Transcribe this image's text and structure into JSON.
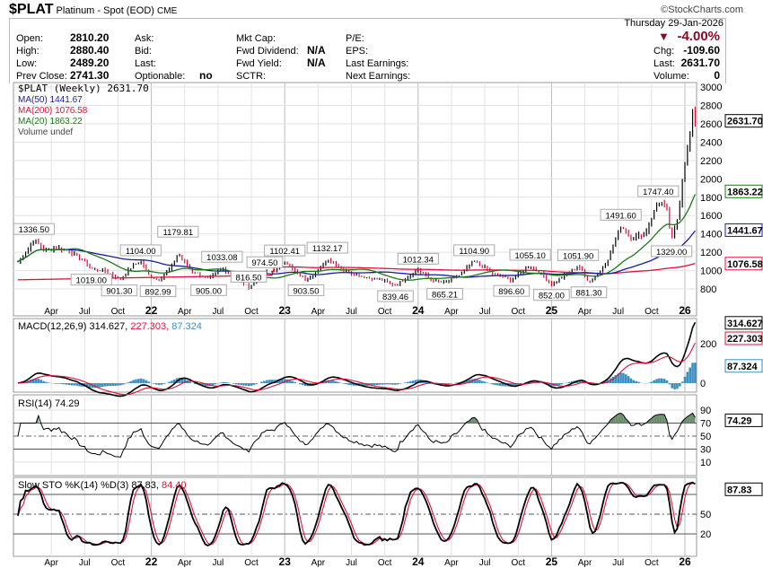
{
  "header": {
    "symbol": "$PLAT",
    "name": "Platinum - Spot (EOD)",
    "exchange": "CME",
    "brand": "©StockCharts.com",
    "date": "Thursday  29-Jan-2026"
  },
  "quote": {
    "open_label": "Open:",
    "open": "2810.20",
    "high_label": "High:",
    "high": "2880.40",
    "low_label": "Low:",
    "low": "2489.20",
    "prev_label": "Prev Close:",
    "prev": "2741.30",
    "ask_label": "Ask:",
    "bid_label": "Bid:",
    "last_label": "Last:",
    "optionable_label": "Optionable:",
    "optionable": "no",
    "mktcap_label": "Mkt Cap:",
    "fwddiv_label": "Fwd Dividend:",
    "fwddiv": "N/A",
    "fwdyield_label": "Fwd Yield:",
    "fwdyield": "N/A",
    "sctr_label": "SCTR:",
    "pe_label": "P/E:",
    "eps_label": "EPS:",
    "lastearn_label": "Last Earnings:",
    "nextearn_label": "Next Earnings:",
    "pct": "-4.00%",
    "chg_label": "Chg:",
    "chg": "-109.60",
    "last2_label": "Last:",
    "last2": "2631.70",
    "vol_label": "Volume:",
    "vol": "0"
  },
  "legend": {
    "price": "$PLAT (Weekly) 2631.70",
    "ma50": "MA(50) 1441.67",
    "ma200": "MA(200) 1076.58",
    "ma20": "MA(20) 1863.22",
    "volume": "Volume undef",
    "macd": "MACD(12,26,9) 314.627,",
    "macd_sig": "227.303,",
    "macd_hist": "87.324",
    "rsi": "RSI(14) 74.29",
    "sto": "Slow STO %K(14) %D(3) 87.83,",
    "sto_d": "84.40"
  },
  "colors": {
    "up": "#000000",
    "down": "#d0103a",
    "ma50": "#1a1aa0",
    "ma200": "#e0103a",
    "ma20": "#1a7a1a",
    "hist": "#3a8fc0",
    "rsi_fill": "#6a8f6a",
    "neg": "#8b0a2a"
  },
  "chart_data": {
    "type": "line",
    "title": "$PLAT (Weekly)",
    "x_labels": [
      [
        "Apr",
        2021.25
      ],
      [
        "Jul",
        2021.5
      ],
      [
        "Oct",
        2021.75
      ],
      [
        "22",
        2022
      ],
      [
        "Apr",
        2022.25
      ],
      [
        "Jul",
        2022.5
      ],
      [
        "Oct",
        2022.75
      ],
      [
        "23",
        2023
      ],
      [
        "Apr",
        2023.25
      ],
      [
        "Jul",
        2023.5
      ],
      [
        "Oct",
        2023.75
      ],
      [
        "24",
        2024
      ],
      [
        "Apr",
        2024.25
      ],
      [
        "Jul",
        2024.5
      ],
      [
        "Oct",
        2024.75
      ],
      [
        "25",
        2025
      ],
      [
        "Apr",
        2025.25
      ],
      [
        "Jul",
        2025.5
      ],
      [
        "Oct",
        2025.75
      ],
      [
        "26",
        2026
      ]
    ],
    "price_axis": [
      "3000",
      "2800",
      "2600",
      "2400",
      "2200",
      "2000",
      "1800",
      "1600",
      "1400",
      "1200",
      "1000",
      "800"
    ],
    "price_ylim": [
      800,
      3000
    ],
    "price_path": [
      [
        2021.0,
        1100
      ],
      [
        2021.06,
        1200
      ],
      [
        2021.12,
        1336.5
      ],
      [
        2021.2,
        1220
      ],
      [
        2021.3,
        1250
      ],
      [
        2021.4,
        1200
      ],
      [
        2021.5,
        1100
      ],
      [
        2021.55,
        1019
      ],
      [
        2021.65,
        1000
      ],
      [
        2021.76,
        901.3
      ],
      [
        2021.86,
        1050
      ],
      [
        2021.92,
        1104
      ],
      [
        2021.98,
        950
      ],
      [
        2022.05,
        893
      ],
      [
        2022.14,
        1020
      ],
      [
        2022.2,
        1179.81
      ],
      [
        2022.3,
        1000
      ],
      [
        2022.43,
        905
      ],
      [
        2022.53,
        1033.08
      ],
      [
        2022.64,
        900
      ],
      [
        2022.73,
        816.5
      ],
      [
        2022.85,
        974.5
      ],
      [
        2022.93,
        1000
      ],
      [
        2023.0,
        1102.41
      ],
      [
        2023.1,
        960
      ],
      [
        2023.16,
        903.5
      ],
      [
        2023.25,
        1000
      ],
      [
        2023.32,
        1132.17
      ],
      [
        2023.45,
        1000
      ],
      [
        2023.6,
        930
      ],
      [
        2023.72,
        900
      ],
      [
        2023.83,
        839.46
      ],
      [
        2023.93,
        940
      ],
      [
        2024.0,
        1012.34
      ],
      [
        2024.1,
        900
      ],
      [
        2024.2,
        865.21
      ],
      [
        2024.32,
        960
      ],
      [
        2024.42,
        1104.9
      ],
      [
        2024.55,
        980
      ],
      [
        2024.7,
        896.6
      ],
      [
        2024.84,
        1055.1
      ],
      [
        2024.95,
        930
      ],
      [
        2025.0,
        852
      ],
      [
        2025.1,
        950
      ],
      [
        2025.2,
        1051.9
      ],
      [
        2025.28,
        881.3
      ],
      [
        2025.36,
        980
      ],
      [
        2025.43,
        1150
      ],
      [
        2025.52,
        1491.6
      ],
      [
        2025.6,
        1350
      ],
      [
        2025.7,
        1400
      ],
      [
        2025.8,
        1747.4
      ],
      [
        2025.86,
        1700
      ],
      [
        2025.9,
        1329
      ],
      [
        2025.95,
        1600
      ],
      [
        2025.99,
        2100
      ],
      [
        2026.03,
        2400
      ],
      [
        2026.06,
        2741.3
      ],
      [
        2026.08,
        2631.7
      ]
    ],
    "annotations": [
      [
        "1336.50",
        2021.12,
        1336.5,
        "up"
      ],
      [
        "1019.00",
        2021.55,
        1019,
        "down"
      ],
      [
        "901.30",
        2021.76,
        901.3,
        "down"
      ],
      [
        "1104.00",
        2021.92,
        1104,
        "up"
      ],
      [
        "892.99",
        2022.05,
        893,
        "down"
      ],
      [
        "1179.81",
        2022.2,
        1179.81,
        "up"
      ],
      [
        "905.00",
        2022.43,
        905,
        "down"
      ],
      [
        "1033.08",
        2022.53,
        1033.08,
        "up"
      ],
      [
        "816.50",
        2022.73,
        816.5,
        "down"
      ],
      [
        "974.50",
        2022.85,
        974.5,
        "up"
      ],
      [
        "1102.41",
        2023.0,
        1102.41,
        "up"
      ],
      [
        "903.50",
        2023.16,
        903.5,
        "down"
      ],
      [
        "1132.17",
        2023.32,
        1132.17,
        "up"
      ],
      [
        "839.46",
        2023.83,
        839.46,
        "down"
      ],
      [
        "1012.34",
        2024.0,
        1012.34,
        "up"
      ],
      [
        "865.21",
        2024.2,
        865.21,
        "down"
      ],
      [
        "1104.90",
        2024.42,
        1104.9,
        "up"
      ],
      [
        "896.60",
        2024.7,
        896.6,
        "down"
      ],
      [
        "1055.10",
        2024.84,
        1055.1,
        "up"
      ],
      [
        "852.00",
        2025.0,
        852,
        "down"
      ],
      [
        "1051.90",
        2025.2,
        1051.9,
        "up"
      ],
      [
        "881.30",
        2025.28,
        881.3,
        "down"
      ],
      [
        "1491.60",
        2025.52,
        1491.6,
        "up"
      ],
      [
        "1747.40",
        2025.8,
        1747.4,
        "up"
      ],
      [
        "1329.00",
        2025.9,
        1329,
        "down"
      ]
    ],
    "last_values": {
      "price": "2631.70",
      "ma20": "1863.22",
      "ma50": "1441.67",
      "ma200": "1076.58",
      "macd": "314.627",
      "signal": "227.303",
      "hist": "87.324",
      "rsi": "74.29",
      "sto_k": "87.83"
    },
    "macd_axis": [
      "200",
      "0"
    ],
    "rsi_axis": [
      "90",
      "70",
      "50",
      "30",
      "10"
    ],
    "sto_axis": [
      "50",
      "20"
    ]
  }
}
